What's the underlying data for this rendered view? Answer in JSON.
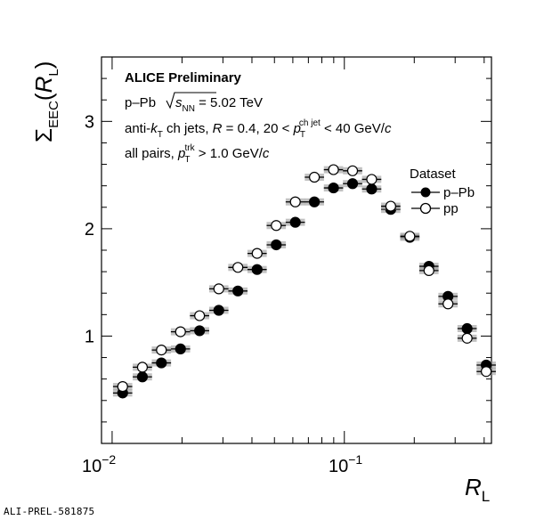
{
  "chart_data": {
    "type": "scatter",
    "xscale": "log",
    "xlim": [
      0.009,
      0.43
    ],
    "ylim": [
      0,
      3.6
    ],
    "ylabel": "Σ_EEC(R_L)",
    "xlabel": "R_L",
    "x_tick_labels": [
      "10⁻²",
      "10⁻¹"
    ],
    "y_tick_labels": [
      "1",
      "2",
      "3"
    ],
    "annotations": [
      "ALICE Preliminary",
      "p–Pb √s_NN = 5.02 TeV",
      "anti-k_T ch jets, R = 0.4, 20 < p_T^ch jet < 40 GeV/c",
      "all pairs, p_T^trk > 1.0 GeV/c"
    ],
    "legend": {
      "title": "Dataset",
      "position": "top-right"
    },
    "x": [
      0.0111,
      0.0135,
      0.0163,
      0.0197,
      0.0238,
      0.0288,
      0.0348,
      0.0421,
      0.0509,
      0.0615,
      0.0743,
      0.0898,
      0.1085,
      0.1311,
      0.1584,
      0.1914,
      0.2313,
      0.2795,
      0.3378,
      0.4082
    ],
    "series": [
      {
        "name": "p–Pb",
        "marker": "filled-circle",
        "values": [
          0.47,
          0.62,
          0.75,
          0.88,
          1.05,
          1.24,
          1.42,
          1.62,
          1.85,
          2.06,
          2.25,
          2.38,
          2.42,
          2.37,
          2.18,
          1.92,
          1.65,
          1.37,
          1.07,
          0.73
        ]
      },
      {
        "name": "pp",
        "marker": "open-circle",
        "values": [
          0.53,
          0.71,
          0.87,
          1.04,
          1.19,
          1.44,
          1.64,
          1.77,
          2.03,
          2.25,
          2.48,
          2.55,
          2.54,
          2.46,
          2.21,
          1.93,
          1.61,
          1.3,
          0.98,
          0.67
        ]
      }
    ]
  },
  "plot": {
    "title_line1": "ALICE Preliminary",
    "title_line2_prefix": "p–Pb ",
    "title_line2_sqrt": "s",
    "title_line2_sub": "NN",
    "title_line2_suffix": " = 5.02 TeV",
    "title_line3_a": "anti-",
    "title_line3_k": "k",
    "title_line3_ksub": "T",
    "title_line3_b": " ch jets, ",
    "title_line3_R": "R",
    "title_line3_c": " = 0.4, 20 < ",
    "title_line3_p": "p",
    "title_line3_psub": "T",
    "title_line3_psup": "ch jet",
    "title_line3_d": " < 40 GeV/",
    "title_line3_cc": "c",
    "title_line4_a": "all pairs, ",
    "title_line4_p": "p",
    "title_line4_psub": "T",
    "title_line4_psup": "trk",
    "title_line4_b": " > 1.0 GeV/",
    "title_line4_c": "c",
    "ylabel_sigma": "Σ",
    "ylabel_sub": "EEC",
    "ylabel_open": "(",
    "ylabel_R": "R",
    "ylabel_Rsub": "L",
    "ylabel_close": ")",
    "xlabel_R": "R",
    "xlabel_sub": "L",
    "xtick_base": "10",
    "xtick_exp1": "−2",
    "xtick_exp2": "−1",
    "legend_title": "Dataset",
    "legend_ppb": "p–Pb",
    "legend_pp": "pp"
  },
  "footer": "ALI-PREL-581875"
}
